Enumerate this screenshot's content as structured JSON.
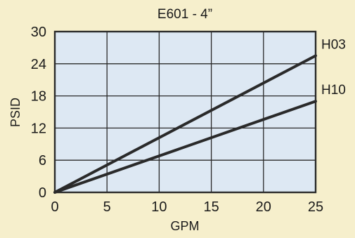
{
  "colors": {
    "page_background": "#f6efcc",
    "plot_background": "#dde8f3",
    "grid": "#2a2a2a",
    "line": "#2a2a2a",
    "text": "#1a1a1a"
  },
  "chart_data": {
    "type": "line",
    "title": "E601 - 4”",
    "xlabel": "GPM",
    "ylabel": "PSID",
    "xlim": [
      0,
      25
    ],
    "ylim": [
      0,
      30
    ],
    "xticks": [
      0,
      5,
      10,
      15,
      20,
      25
    ],
    "yticks": [
      0,
      6,
      12,
      18,
      24,
      30
    ],
    "grid": true,
    "legend": "none",
    "series": [
      {
        "name": "H03",
        "x": [
          0,
          25
        ],
        "y": [
          0,
          25.5
        ]
      },
      {
        "name": "H10",
        "x": [
          0,
          25
        ],
        "y": [
          0,
          17
        ]
      }
    ]
  }
}
